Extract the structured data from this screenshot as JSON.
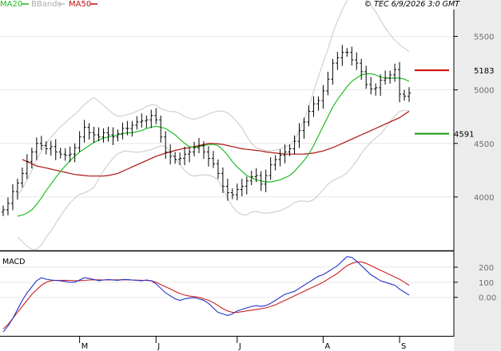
{
  "legend": [
    {
      "label": "MA20",
      "color": "#22bb22"
    },
    {
      "label": "BBands",
      "color": "#bbbbbb"
    },
    {
      "label": "MA50",
      "color": "#bb1111"
    }
  ],
  "copyright": "© TEC 6/9/2026 3:0 GMT",
  "macd_label": "MACD",
  "colors": {
    "up_bar": "#000000",
    "ma20": "#22bb22",
    "ma50": "#aa1111",
    "bbands": "#c8c8c8",
    "resistance": "#cc0000",
    "support": "#119911",
    "macd": "#2233cc",
    "macd_signal": "#cc2222",
    "grid": "#e8e8e8",
    "axis_bg": "#ececec"
  },
  "chart_data": [
    {
      "type": "line",
      "name": "price",
      "y_ticks": [
        {
          "value": 5500,
          "label": "5500"
        },
        {
          "value": 5000,
          "label": "5000"
        },
        {
          "value": 4500,
          "label": "4500"
        },
        {
          "value": 4000,
          "label": "4000"
        }
      ],
      "ylim": [
        3500,
        5750
      ],
      "x_ticks": [
        {
          "index": 16,
          "label": "M"
        },
        {
          "index": 32,
          "label": "J"
        },
        {
          "index": 49,
          "label": "J"
        },
        {
          "index": 67,
          "label": "A"
        },
        {
          "index": 83,
          "label": "S"
        }
      ],
      "levels": [
        {
          "name": "resistance",
          "value": 5183,
          "label": "5183"
        },
        {
          "name": "support",
          "value": 4591,
          "label": "4591"
        }
      ],
      "close": [
        3880,
        3940,
        4050,
        4130,
        4220,
        4330,
        4420,
        4500,
        4480,
        4450,
        4470,
        4420,
        4400,
        4390,
        4400,
        4460,
        4560,
        4650,
        4600,
        4580,
        4560,
        4600,
        4580,
        4560,
        4590,
        4640,
        4640,
        4670,
        4700,
        4710,
        4720,
        4760,
        4720,
        4560,
        4420,
        4380,
        4350,
        4360,
        4400,
        4420,
        4460,
        4480,
        4420,
        4360,
        4310,
        4220,
        4100,
        4040,
        4020,
        4070,
        4100,
        4150,
        4190,
        4200,
        4120,
        4200,
        4300,
        4350,
        4390,
        4420,
        4450,
        4520,
        4620,
        4700,
        4800,
        4870,
        4900,
        4990,
        5100,
        5250,
        5300,
        5350,
        5350,
        5280,
        5250,
        5170,
        5050,
        5010,
        5020,
        5090,
        5110,
        5140,
        5190,
        4960,
        4940,
        4970
      ],
      "ma20": [
        3820,
        3830,
        3850,
        3880,
        3930,
        3990,
        4060,
        4120,
        4180,
        4240,
        4290,
        4340,
        4380,
        4420,
        4450,
        4480,
        4510,
        4530,
        4550,
        4560,
        4570,
        4580,
        4590,
        4600,
        4600,
        4610,
        4620,
        4640,
        4650,
        4660,
        4650,
        4640,
        4610,
        4580,
        4540,
        4500,
        4470,
        4460,
        4470,
        4480,
        4490,
        4490,
        4480,
        4440,
        4390,
        4330,
        4280,
        4240,
        4200,
        4180,
        4160,
        4150,
        4140,
        4140,
        4150,
        4160,
        4180,
        4200,
        4240,
        4290,
        4340,
        4400,
        4480,
        4570,
        4660,
        4750,
        4840,
        4910,
        4970,
        5030,
        5080,
        5110,
        5140,
        5150,
        5150,
        5140,
        5120,
        5110,
        5110,
        5110,
        5110,
        5100,
        5080
      ],
      "ma50": [
        4350,
        4330,
        4310,
        4290,
        4280,
        4270,
        4260,
        4250,
        4240,
        4230,
        4220,
        4210,
        4205,
        4200,
        4195,
        4195,
        4195,
        4195,
        4200,
        4210,
        4220,
        4240,
        4260,
        4280,
        4300,
        4320,
        4340,
        4360,
        4380,
        4395,
        4410,
        4420,
        4435,
        4445,
        4455,
        4460,
        4470,
        4480,
        4490,
        4500,
        4500,
        4495,
        4490,
        4480,
        4470,
        4460,
        4450,
        4445,
        4440,
        4435,
        4430,
        4420,
        4415,
        4410,
        4405,
        4400,
        4400,
        4400,
        4400,
        4400,
        4405,
        4410,
        4420,
        4430,
        4445,
        4460,
        4480,
        4500,
        4520,
        4540,
        4560,
        4580,
        4600,
        4620,
        4640,
        4660,
        4680,
        4700,
        4720,
        4740,
        4770,
        4800
      ]
    },
    {
      "type": "line",
      "name": "macd",
      "y_ticks": [
        {
          "value": 200,
          "label": "200"
        },
        {
          "value": 100,
          "label": "100"
        },
        {
          "value": 0,
          "label": "0.00"
        }
      ],
      "ylim": [
        -250,
        300
      ],
      "macd": [
        -230,
        -190,
        -140,
        -80,
        -20,
        30,
        70,
        110,
        130,
        120,
        115,
        112,
        110,
        105,
        100,
        100,
        115,
        130,
        125,
        118,
        110,
        115,
        118,
        115,
        112,
        118,
        118,
        115,
        112,
        110,
        115,
        110,
        90,
        60,
        30,
        10,
        -10,
        -20,
        -10,
        -5,
        -2,
        -10,
        -20,
        -40,
        -70,
        -100,
        -110,
        -120,
        -110,
        -90,
        -80,
        -70,
        -60,
        -55,
        -60,
        -55,
        -40,
        -20,
        0,
        20,
        30,
        40,
        60,
        80,
        100,
        120,
        140,
        150,
        170,
        190,
        210,
        240,
        270,
        265,
        240,
        210,
        180,
        150,
        130,
        110,
        100,
        90,
        80,
        55,
        35,
        15
      ],
      "signal": [
        -210,
        -180,
        -140,
        -100,
        -60,
        -20,
        20,
        50,
        80,
        100,
        110,
        112,
        113,
        113,
        112,
        110,
        110,
        112,
        115,
        116,
        116,
        115,
        116,
        116,
        116,
        116,
        116,
        115,
        114,
        113,
        112,
        110,
        100,
        85,
        70,
        55,
        40,
        25,
        15,
        8,
        5,
        0,
        -10,
        -20,
        -35,
        -55,
        -75,
        -90,
        -100,
        -100,
        -95,
        -90,
        -85,
        -80,
        -75,
        -70,
        -60,
        -50,
        -35,
        -20,
        -5,
        10,
        25,
        40,
        55,
        70,
        85,
        100,
        120,
        140,
        160,
        185,
        210,
        225,
        235,
        235,
        225,
        210,
        195,
        180,
        165,
        150,
        135,
        120,
        100,
        80
      ]
    }
  ]
}
